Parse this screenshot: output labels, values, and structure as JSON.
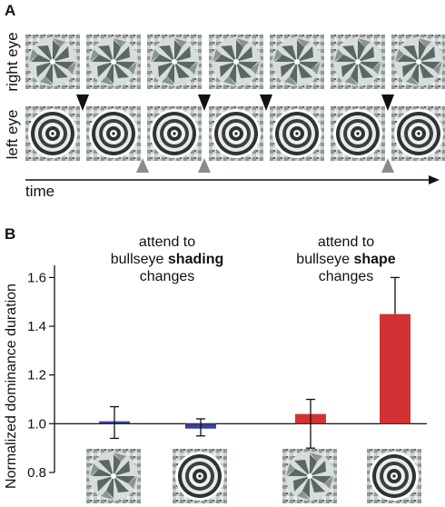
{
  "panel_a": {
    "letter": "A",
    "right_eye_label": "right eye",
    "left_eye_label": "left eye",
    "time_label": "time",
    "frames": 7,
    "down_arrows_after_frame": [
      1,
      3,
      4,
      6
    ],
    "up_arrows_after_frame": [
      2,
      3,
      6
    ]
  },
  "panel_b": {
    "letter": "B",
    "label_left": {
      "line1": "attend to",
      "line2_pre": "bullseye ",
      "line2_bold": "shading",
      "line3": "changes"
    },
    "label_right": {
      "line1": "attend to",
      "line2_pre": "bullseye ",
      "line2_bold": "shape",
      "line3": "changes"
    }
  },
  "chart_data": {
    "type": "bar",
    "ylabel": "Normalized dominance duration",
    "ylim": [
      0.8,
      1.65
    ],
    "baseline": 1.0,
    "yticks": [
      "0.8",
      "1.0",
      "1.2",
      "1.4",
      "1.6"
    ],
    "ytick_values": [
      0.8,
      1.0,
      1.2,
      1.4,
      1.6
    ],
    "bars": [
      {
        "group": "shading",
        "image": "flower",
        "value": 1.01,
        "err_low": 0.94,
        "err_high": 1.07,
        "color": "#3b3f9b"
      },
      {
        "group": "shading",
        "image": "bullseye",
        "value": 0.98,
        "err_low": 0.95,
        "err_high": 1.02,
        "color": "#3b3f9b"
      },
      {
        "group": "shape",
        "image": "flower",
        "value": 1.04,
        "err_low": 0.9,
        "err_high": 1.1,
        "color": "#d33234"
      },
      {
        "group": "shape",
        "image": "bullseye",
        "value": 1.45,
        "err_low": 1.45,
        "err_high": 1.6,
        "color": "#d33234"
      }
    ]
  }
}
